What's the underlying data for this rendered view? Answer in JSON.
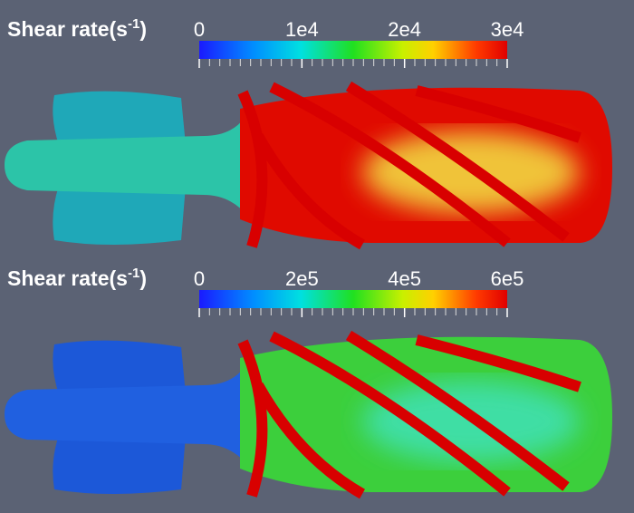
{
  "panels": [
    {
      "label": {
        "text": "Shear rate(s",
        "sup": "-1",
        "end": ")"
      },
      "colorbar": {
        "range": [
          0,
          30000
        ],
        "ticks": [
          0,
          {
            "value": 10000,
            "label": "1e4"
          },
          {
            "value": 20000,
            "label": "2e4"
          },
          {
            "value": 30000,
            "label": "3e4"
          }
        ]
      }
    },
    {
      "label": {
        "text": "Shear rate(s",
        "sup": "-1",
        "end": ")"
      },
      "colorbar": {
        "range": [
          0,
          600000
        ],
        "ticks": [
          0,
          {
            "value": 200000,
            "label": "2e5"
          },
          {
            "value": 400000,
            "label": "4e5"
          },
          {
            "value": 600000,
            "label": "6e5"
          }
        ]
      }
    }
  ]
}
